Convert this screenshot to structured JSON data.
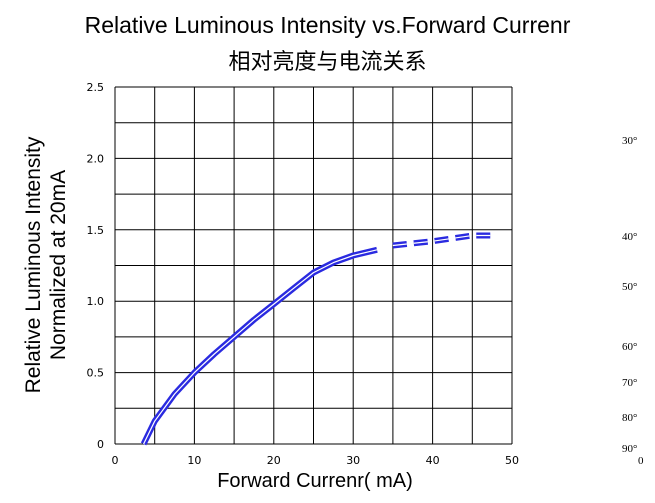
{
  "chart_data": {
    "type": "line",
    "title": "Relative Luminous Intensity vs.Forward Currenr",
    "subtitle": "相对亮度与电流关系",
    "xlabel": "Forward Currenr(  mA)",
    "ylabel_line1": "Relative Luminous Intensity",
    "ylabel_line2": "Normalized at 20mA",
    "xlim": [
      0,
      50
    ],
    "ylim": [
      0,
      2.5
    ],
    "xticks": [
      "0",
      "10",
      "20",
      "30",
      "40",
      "50"
    ],
    "yticks": [
      "0",
      "0.5",
      "1.0",
      "1.5",
      "2.0",
      "2.5"
    ],
    "grid": true,
    "color": "#2a2ae0",
    "series": [
      {
        "style": "solid",
        "x": [
          3.6,
          5,
          7.5,
          10,
          12.5,
          15,
          17.5,
          20,
          22.5,
          25,
          27.5,
          30,
          33
        ],
        "y": [
          0.0,
          0.16,
          0.35,
          0.5,
          0.63,
          0.75,
          0.87,
          0.98,
          1.09,
          1.2,
          1.27,
          1.32,
          1.36
        ]
      },
      {
        "style": "dashed",
        "x": [
          35,
          40,
          42.5,
          45,
          47.5
        ],
        "y": [
          1.39,
          1.42,
          1.44,
          1.46,
          1.46
        ]
      }
    ]
  },
  "side_labels": [
    "30°",
    "40°",
    "50°",
    "60°",
    "70°",
    "80°",
    "90°",
    "0"
  ]
}
